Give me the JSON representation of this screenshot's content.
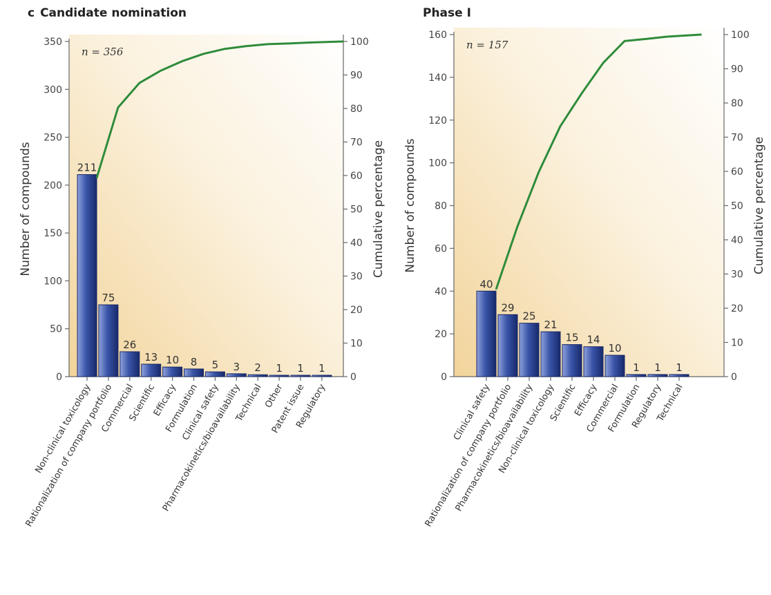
{
  "chart_data": [
    {
      "type": "bar",
      "panel_letter": "c",
      "title": "Candidate nomination",
      "annotation": "n = 356",
      "ylabel": "Number of compounds",
      "y2label": "Cumulative percentage",
      "ylim": [
        0,
        350
      ],
      "yticks": [
        0,
        50,
        100,
        150,
        200,
        250,
        300,
        350
      ],
      "y2lim": [
        0,
        100
      ],
      "y2ticks": [
        0,
        10,
        20,
        30,
        40,
        50,
        60,
        70,
        80,
        90,
        100
      ],
      "categories": [
        "Non-clinical toxicology",
        "Rationalization of company portfolio",
        "Commercial",
        "Scientific",
        "Efficacy",
        "Formulation",
        "Clinical safety",
        "Pharmacokinetics/bioavailability",
        "Technical",
        "Other",
        "Patent issue",
        "Regulatory"
      ],
      "values": [
        211,
        75,
        26,
        13,
        10,
        8,
        5,
        3,
        2,
        1,
        1,
        1
      ],
      "cumulative_percentage": [
        59.3,
        80.3,
        87.6,
        91.3,
        94.1,
        96.3,
        97.8,
        98.6,
        99.2,
        99.4,
        99.7,
        100
      ]
    },
    {
      "type": "bar",
      "panel_letter": "",
      "title": "Phase I",
      "annotation": "n = 157",
      "ylabel": "Number of compounds",
      "y2label": "Cumulative percentage",
      "ylim": [
        0,
        160
      ],
      "yticks": [
        0,
        20,
        40,
        60,
        80,
        100,
        120,
        140,
        160
      ],
      "y2lim": [
        0,
        100
      ],
      "y2ticks": [
        0,
        10,
        20,
        30,
        40,
        50,
        60,
        70,
        80,
        90,
        100
      ],
      "categories": [
        "Clinical safety",
        "Rationalization of company portfolio",
        "Pharmacokinetics/bioavailability",
        "Non-clinical toxicology",
        "Scientific",
        "Efficacy",
        "Commercial",
        "Formulation",
        "Regulatory",
        "Technical"
      ],
      "values": [
        40,
        29,
        25,
        21,
        15,
        14,
        10,
        1,
        1,
        1
      ],
      "cumulative_percentage": [
        25.5,
        43.9,
        59.9,
        73.2,
        82.8,
        91.7,
        98.1,
        98.7,
        99.4,
        100
      ]
    }
  ],
  "colors": {
    "bar_fill_light": "#7a8fd0",
    "bar_fill_dark": "#1b2f7a",
    "line": "#2e8b3a",
    "background_warm": "#f3d49a"
  }
}
